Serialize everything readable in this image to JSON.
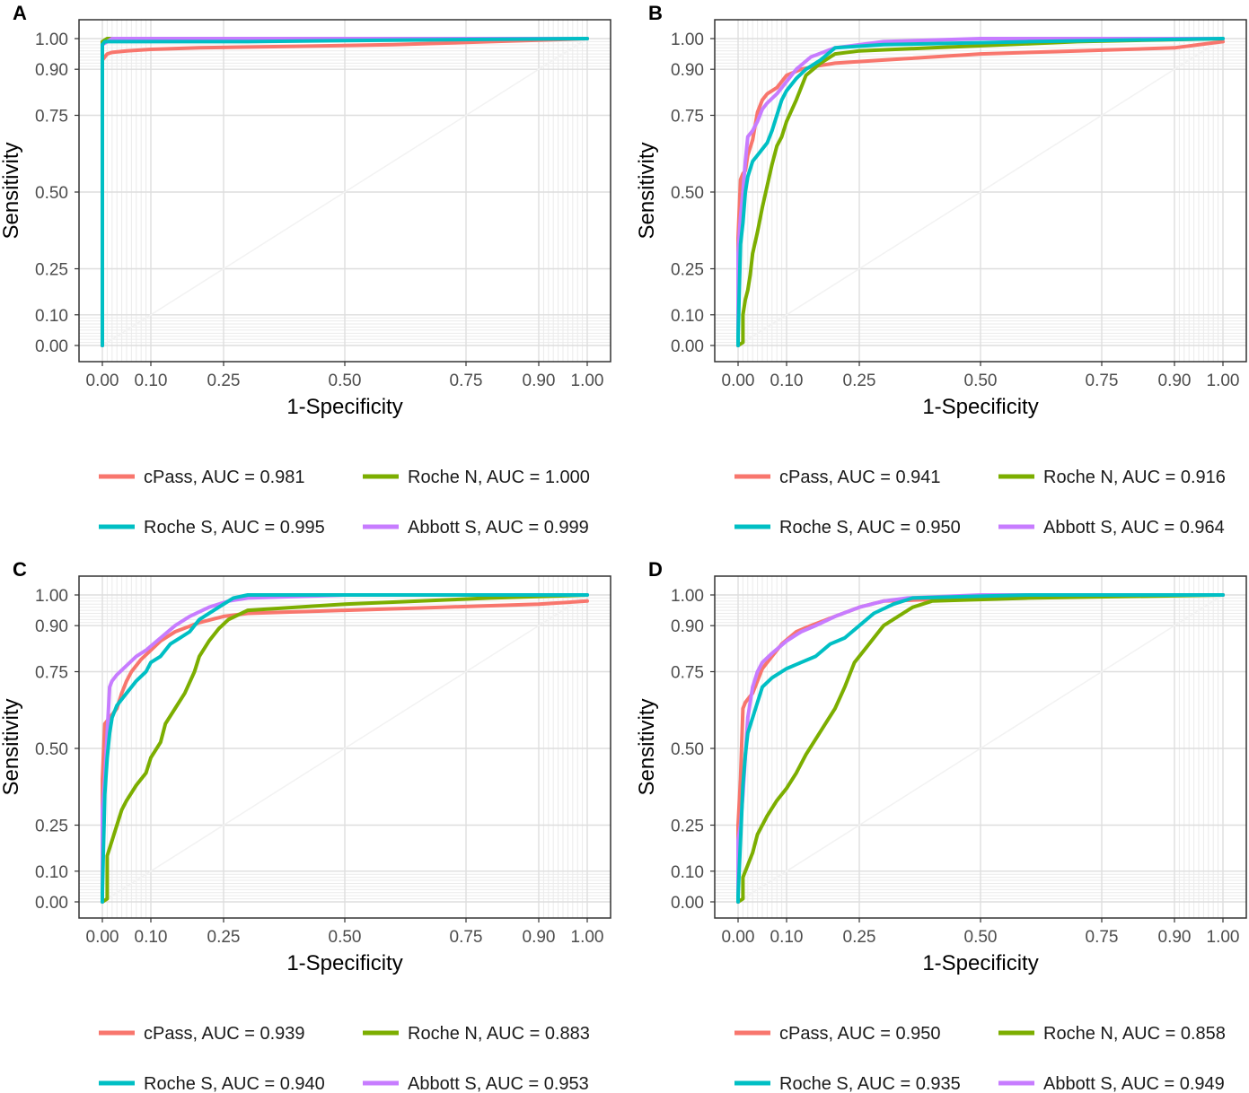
{
  "chart_data": [
    {
      "type": "line",
      "panel": "A",
      "xlabel": "1-Specificity",
      "ylabel": "Sensitivity",
      "xlim": [
        0,
        1
      ],
      "ylim": [
        0,
        1
      ],
      "xticks": [
        0,
        0.1,
        0.25,
        0.5,
        0.75,
        0.9,
        1
      ],
      "xtick_labels": [
        "0.00",
        "0.10",
        "0.25",
        "0.50",
        "0.75",
        "0.90",
        "1.00"
      ],
      "yticks": [
        0,
        0.1,
        0.25,
        0.5,
        0.75,
        0.9,
        1
      ],
      "ytick_labels": [
        "0.00",
        "0.10",
        "0.25",
        "0.50",
        "0.75",
        "0.90",
        "1.00"
      ],
      "legend": [
        "cPass, AUC = 0.981",
        "Roche N, AUC = 1.000",
        "Roche S, AUC = 0.995",
        "Abbott S, AUC = 0.999"
      ],
      "series": [
        {
          "name": "cPass",
          "auc": 0.981,
          "color": "#F8766D",
          "x": [
            0,
            0,
            0.005,
            0.01,
            0.02,
            0.05,
            0.1,
            0.2,
            0.4,
            0.6,
            0.8,
            0.9,
            1
          ],
          "y": [
            0,
            0.93,
            0.94,
            0.95,
            0.955,
            0.96,
            0.965,
            0.97,
            0.975,
            0.98,
            0.99,
            0.995,
            1
          ]
        },
        {
          "name": "Roche N",
          "auc": 1.0,
          "color": "#7CAE00",
          "x": [
            0,
            0,
            0.01,
            1
          ],
          "y": [
            0,
            0.99,
            1,
            1
          ]
        },
        {
          "name": "Abbott S",
          "auc": 0.999,
          "color": "#C77CFF",
          "x": [
            0,
            0,
            0.01,
            0.02,
            1
          ],
          "y": [
            0,
            0.98,
            0.99,
            1,
            1
          ]
        },
        {
          "name": "Roche S",
          "auc": 0.995,
          "color": "#00BFC4",
          "x": [
            0,
            0,
            0.005,
            0.02,
            0.3,
            0.6,
            1
          ],
          "y": [
            0,
            0.98,
            0.99,
            0.99,
            0.99,
            0.995,
            1
          ]
        }
      ]
    },
    {
      "type": "line",
      "panel": "B",
      "xlabel": "1-Specificity",
      "ylabel": "Sensitivity",
      "xlim": [
        0,
        1
      ],
      "ylim": [
        0,
        1
      ],
      "xticks": [
        0,
        0.1,
        0.25,
        0.5,
        0.75,
        0.9,
        1
      ],
      "xtick_labels": [
        "0.00",
        "0.10",
        "0.25",
        "0.50",
        "0.75",
        "0.90",
        "1.00"
      ],
      "yticks": [
        0,
        0.1,
        0.25,
        0.5,
        0.75,
        0.9,
        1
      ],
      "ytick_labels": [
        "0.00",
        "0.10",
        "0.25",
        "0.50",
        "0.75",
        "0.90",
        "1.00"
      ],
      "legend": [
        "cPass, AUC = 0.941",
        "Roche N, AUC = 0.916",
        "Roche S, AUC = 0.950",
        "Abbott S, AUC = 0.964"
      ],
      "series": [
        {
          "name": "cPass",
          "auc": 0.941,
          "color": "#F8766D",
          "x": [
            0,
            0,
            0.005,
            0.01,
            0.015,
            0.02,
            0.03,
            0.04,
            0.05,
            0.06,
            0.08,
            0.1,
            0.13,
            0.16,
            0.2,
            0.3,
            0.5,
            0.7,
            0.9,
            1
          ],
          "y": [
            0,
            0.35,
            0.54,
            0.56,
            0.57,
            0.62,
            0.67,
            0.76,
            0.8,
            0.82,
            0.84,
            0.88,
            0.9,
            0.91,
            0.92,
            0.93,
            0.95,
            0.96,
            0.97,
            0.99
          ]
        },
        {
          "name": "Roche N",
          "auc": 0.916,
          "color": "#7CAE00",
          "x": [
            0,
            0.01,
            0.01,
            0.015,
            0.02,
            0.025,
            0.03,
            0.04,
            0.05,
            0.06,
            0.07,
            0.08,
            0.09,
            0.1,
            0.12,
            0.14,
            0.17,
            0.2,
            0.25,
            0.4,
            0.7,
            1
          ],
          "y": [
            0,
            0.01,
            0.1,
            0.15,
            0.18,
            0.23,
            0.3,
            0.37,
            0.45,
            0.52,
            0.59,
            0.65,
            0.68,
            0.73,
            0.8,
            0.88,
            0.92,
            0.95,
            0.96,
            0.97,
            0.99,
            1
          ]
        },
        {
          "name": "Abbott S",
          "auc": 0.964,
          "color": "#C77CFF",
          "x": [
            0,
            0,
            0.005,
            0.01,
            0.015,
            0.02,
            0.03,
            0.04,
            0.05,
            0.06,
            0.08,
            0.1,
            0.12,
            0.15,
            0.2,
            0.3,
            0.5,
            1
          ],
          "y": [
            0,
            0.3,
            0.42,
            0.5,
            0.6,
            0.68,
            0.7,
            0.73,
            0.77,
            0.79,
            0.82,
            0.86,
            0.9,
            0.94,
            0.97,
            0.99,
            1,
            1
          ]
        },
        {
          "name": "Roche S",
          "auc": 0.95,
          "color": "#00BFC4",
          "x": [
            0,
            0,
            0.005,
            0.01,
            0.015,
            0.02,
            0.03,
            0.04,
            0.05,
            0.06,
            0.07,
            0.08,
            0.09,
            0.1,
            0.12,
            0.14,
            0.17,
            0.2,
            0.3,
            0.6,
            1
          ],
          "y": [
            0,
            0.03,
            0.33,
            0.4,
            0.5,
            0.55,
            0.6,
            0.62,
            0.64,
            0.66,
            0.7,
            0.75,
            0.8,
            0.83,
            0.87,
            0.9,
            0.93,
            0.97,
            0.98,
            0.99,
            1
          ]
        }
      ]
    },
    {
      "type": "line",
      "panel": "C",
      "xlabel": "1-Specificity",
      "ylabel": "Sensitivity",
      "xlim": [
        0,
        1
      ],
      "ylim": [
        0,
        1
      ],
      "xticks": [
        0,
        0.1,
        0.25,
        0.5,
        0.75,
        0.9,
        1
      ],
      "xtick_labels": [
        "0.00",
        "0.10",
        "0.25",
        "0.50",
        "0.75",
        "0.90",
        "1.00"
      ],
      "yticks": [
        0,
        0.1,
        0.25,
        0.5,
        0.75,
        0.9,
        1
      ],
      "ytick_labels": [
        "0.00",
        "0.10",
        "0.25",
        "0.50",
        "0.75",
        "0.90",
        "1.00"
      ],
      "legend": [
        "cPass, AUC = 0.939",
        "Roche N, AUC = 0.883",
        "Roche S, AUC = 0.940",
        "Abbott S, AUC = 0.953"
      ],
      "series": [
        {
          "name": "cPass",
          "auc": 0.939,
          "color": "#F8766D",
          "x": [
            0,
            0,
            0.005,
            0.01,
            0.02,
            0.03,
            0.04,
            0.05,
            0.06,
            0.08,
            0.1,
            0.12,
            0.15,
            0.2,
            0.25,
            0.3,
            0.5,
            0.7,
            0.9,
            1
          ],
          "y": [
            0,
            0.4,
            0.58,
            0.59,
            0.61,
            0.63,
            0.68,
            0.72,
            0.75,
            0.79,
            0.82,
            0.85,
            0.88,
            0.91,
            0.93,
            0.94,
            0.95,
            0.96,
            0.97,
            0.98
          ]
        },
        {
          "name": "Roche N",
          "auc": 0.883,
          "color": "#7CAE00",
          "x": [
            0,
            0.01,
            0.01,
            0.02,
            0.03,
            0.04,
            0.05,
            0.07,
            0.09,
            0.1,
            0.12,
            0.13,
            0.15,
            0.17,
            0.19,
            0.2,
            0.22,
            0.24,
            0.26,
            0.3,
            0.5,
            0.8,
            1
          ],
          "y": [
            0,
            0.01,
            0.15,
            0.2,
            0.25,
            0.3,
            0.33,
            0.38,
            0.42,
            0.47,
            0.52,
            0.58,
            0.63,
            0.68,
            0.75,
            0.8,
            0.85,
            0.89,
            0.92,
            0.95,
            0.97,
            0.99,
            1
          ]
        },
        {
          "name": "Abbott S",
          "auc": 0.953,
          "color": "#C77CFF",
          "x": [
            0,
            0,
            0.005,
            0.01,
            0.015,
            0.02,
            0.03,
            0.05,
            0.07,
            0.09,
            0.12,
            0.15,
            0.18,
            0.22,
            0.26,
            0.3,
            0.5,
            1
          ],
          "y": [
            0,
            0.3,
            0.4,
            0.55,
            0.7,
            0.72,
            0.74,
            0.77,
            0.8,
            0.82,
            0.86,
            0.9,
            0.93,
            0.96,
            0.98,
            0.99,
            1,
            1
          ]
        },
        {
          "name": "Roche S",
          "auc": 0.94,
          "color": "#00BFC4",
          "x": [
            0,
            0,
            0.005,
            0.01,
            0.015,
            0.02,
            0.03,
            0.05,
            0.07,
            0.09,
            0.1,
            0.12,
            0.14,
            0.16,
            0.18,
            0.2,
            0.23,
            0.27,
            0.3,
            0.6,
            1
          ],
          "y": [
            0,
            0.03,
            0.35,
            0.47,
            0.55,
            0.6,
            0.64,
            0.68,
            0.72,
            0.75,
            0.78,
            0.8,
            0.84,
            0.86,
            0.88,
            0.92,
            0.95,
            0.99,
            1,
            1,
            1
          ]
        }
      ]
    },
    {
      "type": "line",
      "panel": "D",
      "xlabel": "1-Specificity",
      "ylabel": "Sensitivity",
      "xlim": [
        0,
        1
      ],
      "ylim": [
        0,
        1
      ],
      "xticks": [
        0,
        0.1,
        0.25,
        0.5,
        0.75,
        0.9,
        1
      ],
      "xtick_labels": [
        "0.00",
        "0.10",
        "0.25",
        "0.50",
        "0.75",
        "0.90",
        "1.00"
      ],
      "yticks": [
        0,
        0.1,
        0.25,
        0.5,
        0.75,
        0.9,
        1
      ],
      "ytick_labels": [
        "0.00",
        "0.10",
        "0.25",
        "0.50",
        "0.75",
        "0.90",
        "1.00"
      ],
      "legend": [
        "cPass, AUC = 0.950",
        "Roche N, AUC = 0.858",
        "Roche S, AUC = 0.935",
        "Abbott S, AUC = 0.949"
      ],
      "series": [
        {
          "name": "cPass",
          "auc": 0.95,
          "color": "#F8766D",
          "x": [
            0,
            0,
            0.005,
            0.01,
            0.015,
            0.02,
            0.03,
            0.04,
            0.05,
            0.07,
            0.09,
            0.12,
            0.15,
            0.2,
            0.25,
            0.3,
            0.5,
            0.8,
            1
          ],
          "y": [
            0,
            0.25,
            0.4,
            0.63,
            0.65,
            0.66,
            0.68,
            0.72,
            0.76,
            0.8,
            0.84,
            0.88,
            0.9,
            0.93,
            0.96,
            0.98,
            0.99,
            1,
            1
          ]
        },
        {
          "name": "Roche N",
          "auc": 0.858,
          "color": "#7CAE00",
          "x": [
            0,
            0.01,
            0.01,
            0.02,
            0.03,
            0.04,
            0.06,
            0.08,
            0.1,
            0.12,
            0.14,
            0.16,
            0.18,
            0.2,
            0.22,
            0.24,
            0.26,
            0.28,
            0.3,
            0.33,
            0.36,
            0.4,
            0.6,
            1
          ],
          "y": [
            0,
            0.01,
            0.08,
            0.12,
            0.16,
            0.22,
            0.28,
            0.33,
            0.37,
            0.42,
            0.48,
            0.53,
            0.58,
            0.63,
            0.7,
            0.78,
            0.82,
            0.86,
            0.9,
            0.93,
            0.96,
            0.98,
            0.99,
            1
          ]
        },
        {
          "name": "Abbott S",
          "auc": 0.949,
          "color": "#C77CFF",
          "x": [
            0,
            0,
            0.005,
            0.01,
            0.02,
            0.03,
            0.04,
            0.05,
            0.07,
            0.1,
            0.13,
            0.16,
            0.2,
            0.25,
            0.3,
            0.35,
            0.5,
            1
          ],
          "y": [
            0,
            0.2,
            0.25,
            0.35,
            0.6,
            0.7,
            0.75,
            0.78,
            0.81,
            0.85,
            0.88,
            0.9,
            0.93,
            0.96,
            0.98,
            0.99,
            1,
            1
          ]
        },
        {
          "name": "Roche S",
          "auc": 0.935,
          "color": "#00BFC4",
          "x": [
            0,
            0,
            0.005,
            0.01,
            0.015,
            0.02,
            0.03,
            0.04,
            0.05,
            0.07,
            0.1,
            0.13,
            0.16,
            0.19,
            0.22,
            0.25,
            0.28,
            0.32,
            0.36,
            0.6,
            1
          ],
          "y": [
            0,
            0.02,
            0.2,
            0.38,
            0.48,
            0.55,
            0.6,
            0.65,
            0.7,
            0.73,
            0.76,
            0.78,
            0.8,
            0.84,
            0.86,
            0.9,
            0.94,
            0.97,
            0.99,
            1,
            1
          ]
        }
      ]
    }
  ]
}
